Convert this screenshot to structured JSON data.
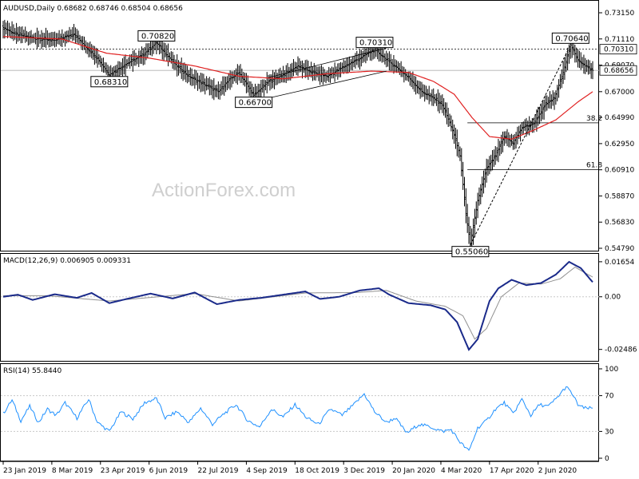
{
  "chart_data": [
    {
      "type": "ohlc",
      "title": "AUDUSD,Daily  0.68682 0.68746 0.68504 0.68656",
      "symbol": "AUDUSD",
      "timeframe": "Daily",
      "ohlc_last": {
        "open": 0.68682,
        "high": 0.68746,
        "low": 0.68504,
        "close": 0.68656
      },
      "ylim": [
        0.5479,
        0.7315
      ],
      "y_ticks": [
        "0.73150",
        "0.71110",
        "0.69070",
        "0.67000",
        "0.64990",
        "0.62950",
        "0.60910",
        "0.58870",
        "0.56830",
        "0.54790"
      ],
      "x_ticks": [
        "23 Jan 2019",
        "8 Mar 2019",
        "23 Apr 2019",
        "6 Jun 2019",
        "22 Jul 2019",
        "4 Sep 2019",
        "18 Oct 2019",
        "3 Dec 2019",
        "20 Jan 2020",
        "4 Mar 2020",
        "17 Apr 2020",
        "2 Jun 2020"
      ],
      "price_path": [
        [
          0,
          0.72
        ],
        [
          8,
          0.715
        ],
        [
          20,
          0.712
        ],
        [
          35,
          0.71
        ],
        [
          48,
          0.715
        ],
        [
          56,
          0.705
        ],
        [
          64,
          0.696
        ],
        [
          72,
          0.6831
        ],
        [
          84,
          0.692
        ],
        [
          94,
          0.698
        ],
        [
          104,
          0.7082
        ],
        [
          110,
          0.7
        ],
        [
          118,
          0.69
        ],
        [
          126,
          0.682
        ],
        [
          136,
          0.676
        ],
        [
          146,
          0.67
        ],
        [
          154,
          0.68
        ],
        [
          160,
          0.685
        ],
        [
          170,
          0.667
        ],
        [
          180,
          0.678
        ],
        [
          190,
          0.683
        ],
        [
          200,
          0.69
        ],
        [
          210,
          0.685
        ],
        [
          220,
          0.682
        ],
        [
          232,
          0.69
        ],
        [
          242,
          0.696
        ],
        [
          252,
          0.7031
        ],
        [
          260,
          0.695
        ],
        [
          268,
          0.688
        ],
        [
          276,
          0.68
        ],
        [
          284,
          0.67
        ],
        [
          292,
          0.665
        ],
        [
          298,
          0.66
        ],
        [
          305,
          0.64
        ],
        [
          310,
          0.62
        ],
        [
          314,
          0.575
        ],
        [
          317,
          0.5506
        ],
        [
          322,
          0.585
        ],
        [
          328,
          0.61
        ],
        [
          334,
          0.62
        ],
        [
          340,
          0.635
        ],
        [
          346,
          0.63
        ],
        [
          352,
          0.642
        ],
        [
          360,
          0.645
        ],
        [
          368,
          0.66
        ],
        [
          374,
          0.665
        ],
        [
          380,
          0.685
        ],
        [
          385,
          0.7064
        ],
        [
          390,
          0.695
        ],
        [
          395,
          0.69
        ],
        [
          400,
          0.6866
        ]
      ],
      "sma_path": [
        [
          0,
          0.713
        ],
        [
          40,
          0.711
        ],
        [
          70,
          0.7
        ],
        [
          100,
          0.696
        ],
        [
          130,
          0.69
        ],
        [
          160,
          0.682
        ],
        [
          190,
          0.68
        ],
        [
          220,
          0.684
        ],
        [
          250,
          0.686
        ],
        [
          275,
          0.685
        ],
        [
          292,
          0.678
        ],
        [
          306,
          0.668
        ],
        [
          318,
          0.65
        ],
        [
          330,
          0.635
        ],
        [
          345,
          0.633
        ],
        [
          360,
          0.64
        ],
        [
          375,
          0.648
        ],
        [
          390,
          0.662
        ],
        [
          400,
          0.67
        ]
      ],
      "annotations": [
        {
          "label": "0.70820",
          "x": 104,
          "y": 0.7082
        },
        {
          "label": "0.68310",
          "x": 72,
          "y": 0.6831
        },
        {
          "label": "0.66700",
          "x": 170,
          "y": 0.667
        },
        {
          "label": "0.70310",
          "x": 252,
          "y": 0.7031
        },
        {
          "label": "0.70640",
          "x": 385,
          "y": 0.7064
        },
        {
          "label": "0.55060",
          "x": 317,
          "y": 0.5506
        }
      ],
      "price_tags": [
        {
          "label": "0.70310",
          "y": 0.7031
        },
        {
          "label": "0.68656",
          "y": 0.68656
        }
      ],
      "hlines_dotted": [
        0.7031
      ],
      "hlines_solid": [
        0.68656
      ],
      "fib_levels": [
        {
          "label": "38.2",
          "y": 0.6457,
          "x_start": 315
        },
        {
          "label": "61.8",
          "y": 0.6092,
          "x_start": 315
        }
      ],
      "channel": {
        "upper": [
          [
            180,
            0.681
          ],
          [
            260,
            0.704
          ]
        ],
        "lower": [
          [
            180,
            0.665
          ],
          [
            260,
            0.686
          ]
        ]
      },
      "trendline": [
        [
          317,
          0.5506
        ],
        [
          385,
          0.7064
        ]
      ],
      "watermark": "ActionForex.com",
      "colors": {
        "price": "#000000",
        "sma": "#e02020",
        "grid": "#c8c8c8",
        "tag_bg": "#ffffff"
      }
    },
    {
      "type": "line",
      "title": "MACD(12,26,9) 0.006905 0.009331",
      "ylim": [
        -0.028,
        0.018
      ],
      "y_ticks": [
        "0.01654",
        "0.00",
        "-0.02486"
      ],
      "macd_path": [
        [
          0,
          0.0
        ],
        [
          10,
          0.001
        ],
        [
          20,
          -0.0015
        ],
        [
          35,
          0.0012
        ],
        [
          50,
          -0.0005
        ],
        [
          60,
          0.0018
        ],
        [
          72,
          -0.003
        ],
        [
          84,
          -0.001
        ],
        [
          100,
          0.0015
        ],
        [
          115,
          -0.0008
        ],
        [
          130,
          0.002
        ],
        [
          145,
          -0.0035
        ],
        [
          160,
          -0.0015
        ],
        [
          175,
          -0.0005
        ],
        [
          190,
          0.001
        ],
        [
          205,
          0.0025
        ],
        [
          215,
          -0.001
        ],
        [
          228,
          0.0
        ],
        [
          242,
          0.003
        ],
        [
          255,
          0.004
        ],
        [
          262,
          0.001
        ],
        [
          275,
          -0.003
        ],
        [
          290,
          -0.004
        ],
        [
          300,
          -0.006
        ],
        [
          308,
          -0.012
        ],
        [
          316,
          -0.025
        ],
        [
          322,
          -0.02
        ],
        [
          330,
          -0.002
        ],
        [
          336,
          0.004
        ],
        [
          345,
          0.008
        ],
        [
          355,
          0.0055
        ],
        [
          365,
          0.0065
        ],
        [
          375,
          0.0105
        ],
        [
          384,
          0.0165
        ],
        [
          392,
          0.0135
        ],
        [
          400,
          0.0069
        ]
      ],
      "signal_path": [
        [
          0,
          0.0005
        ],
        [
          30,
          0.0005
        ],
        [
          72,
          -0.002
        ],
        [
          130,
          0.0015
        ],
        [
          160,
          -0.002
        ],
        [
          205,
          0.0018
        ],
        [
          240,
          0.002
        ],
        [
          260,
          0.003
        ],
        [
          280,
          -0.002
        ],
        [
          300,
          -0.0045
        ],
        [
          312,
          -0.009
        ],
        [
          320,
          -0.02
        ],
        [
          328,
          -0.015
        ],
        [
          338,
          0.0
        ],
        [
          350,
          0.0065
        ],
        [
          365,
          0.006
        ],
        [
          378,
          0.0085
        ],
        [
          388,
          0.014
        ],
        [
          400,
          0.0093
        ]
      ],
      "colors": {
        "macd": "#1a2a8a",
        "signal": "#909090",
        "zero": "#c8c8c8"
      }
    },
    {
      "type": "line",
      "title": "RSI(14) 55.8440",
      "ylim": [
        0,
        100
      ],
      "y_ticks": [
        "100",
        "70",
        "30",
        "0"
      ],
      "levels": [
        70,
        30
      ],
      "rsi_path": [
        [
          0,
          50
        ],
        [
          6,
          65
        ],
        [
          12,
          42
        ],
        [
          18,
          58
        ],
        [
          24,
          40
        ],
        [
          30,
          55
        ],
        [
          36,
          48
        ],
        [
          42,
          62
        ],
        [
          50,
          45
        ],
        [
          58,
          66
        ],
        [
          64,
          40
        ],
        [
          72,
          30
        ],
        [
          80,
          52
        ],
        [
          88,
          44
        ],
        [
          96,
          62
        ],
        [
          104,
          67
        ],
        [
          110,
          45
        ],
        [
          118,
          52
        ],
        [
          126,
          40
        ],
        [
          134,
          56
        ],
        [
          142,
          38
        ],
        [
          150,
          50
        ],
        [
          158,
          60
        ],
        [
          166,
          42
        ],
        [
          174,
          35
        ],
        [
          182,
          55
        ],
        [
          190,
          46
        ],
        [
          198,
          60
        ],
        [
          206,
          45
        ],
        [
          214,
          38
        ],
        [
          222,
          55
        ],
        [
          230,
          48
        ],
        [
          238,
          60
        ],
        [
          245,
          72
        ],
        [
          252,
          52
        ],
        [
          260,
          40
        ],
        [
          266,
          45
        ],
        [
          274,
          28
        ],
        [
          282,
          38
        ],
        [
          290,
          35
        ],
        [
          298,
          30
        ],
        [
          304,
          32
        ],
        [
          310,
          18
        ],
        [
          316,
          8
        ],
        [
          322,
          34
        ],
        [
          328,
          42
        ],
        [
          334,
          55
        ],
        [
          340,
          62
        ],
        [
          346,
          50
        ],
        [
          352,
          66
        ],
        [
          358,
          48
        ],
        [
          364,
          60
        ],
        [
          370,
          58
        ],
        [
          376,
          68
        ],
        [
          382,
          80
        ],
        [
          386,
          72
        ],
        [
          390,
          60
        ],
        [
          394,
          56
        ],
        [
          400,
          55.8
        ]
      ],
      "colors": {
        "rsi": "#1e90ff",
        "level": "#c8c8c8"
      }
    }
  ]
}
